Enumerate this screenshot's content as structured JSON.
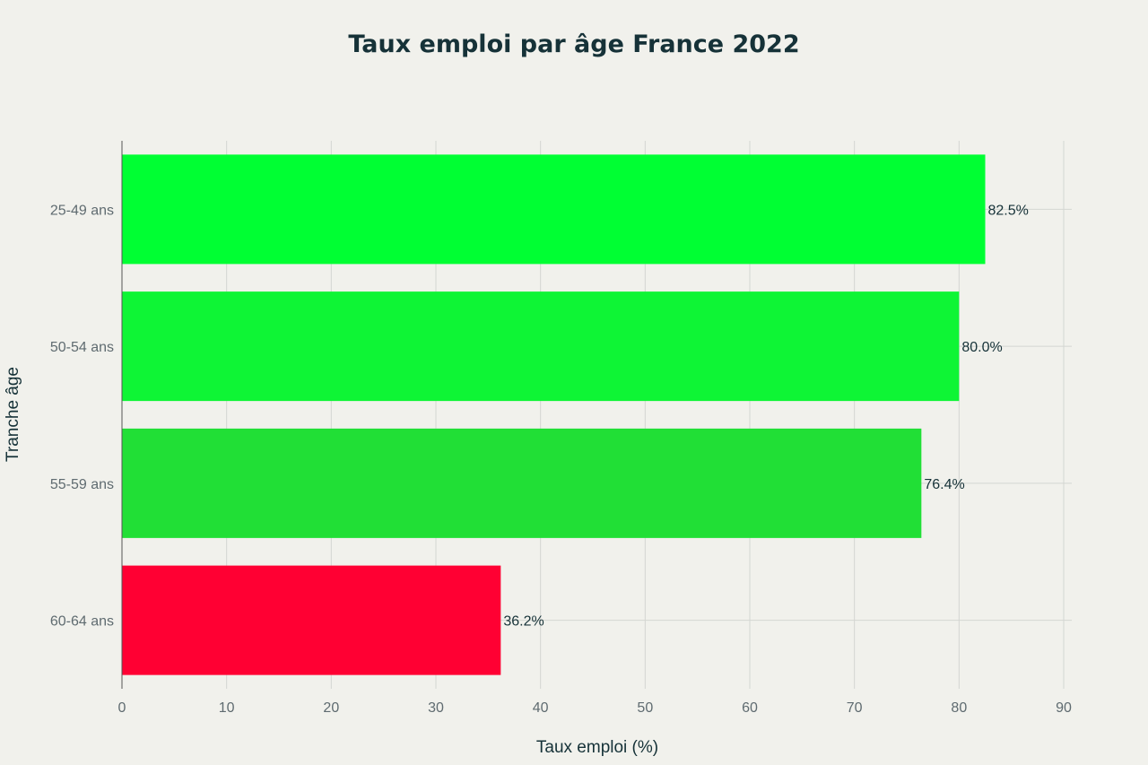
{
  "chart_data": {
    "type": "bar",
    "orientation": "horizontal",
    "title": "Taux emploi par âge France 2022",
    "xlabel": "Taux emploi (%)",
    "ylabel": "Tranche âge",
    "categories": [
      "25-49 ans",
      "50-54 ans",
      "55-59 ans",
      "60-64 ans"
    ],
    "values": [
      82.5,
      80.0,
      76.4,
      36.2
    ],
    "data_labels": [
      "82.5%",
      "80.0%",
      "76.4%",
      "36.2%"
    ],
    "bar_colors": [
      "#00ff33",
      "#0ef535",
      "#21df36",
      "#ff0033"
    ],
    "xlim": [
      0,
      90
    ],
    "xticks": [
      0,
      10,
      20,
      30,
      40,
      50,
      60,
      70,
      80,
      90
    ],
    "grid": true,
    "legend": "none"
  },
  "colors": {
    "background": "#f1f1ec",
    "title": "#163238",
    "gridline": "#d4d6d2",
    "axis_line": "#555555"
  }
}
